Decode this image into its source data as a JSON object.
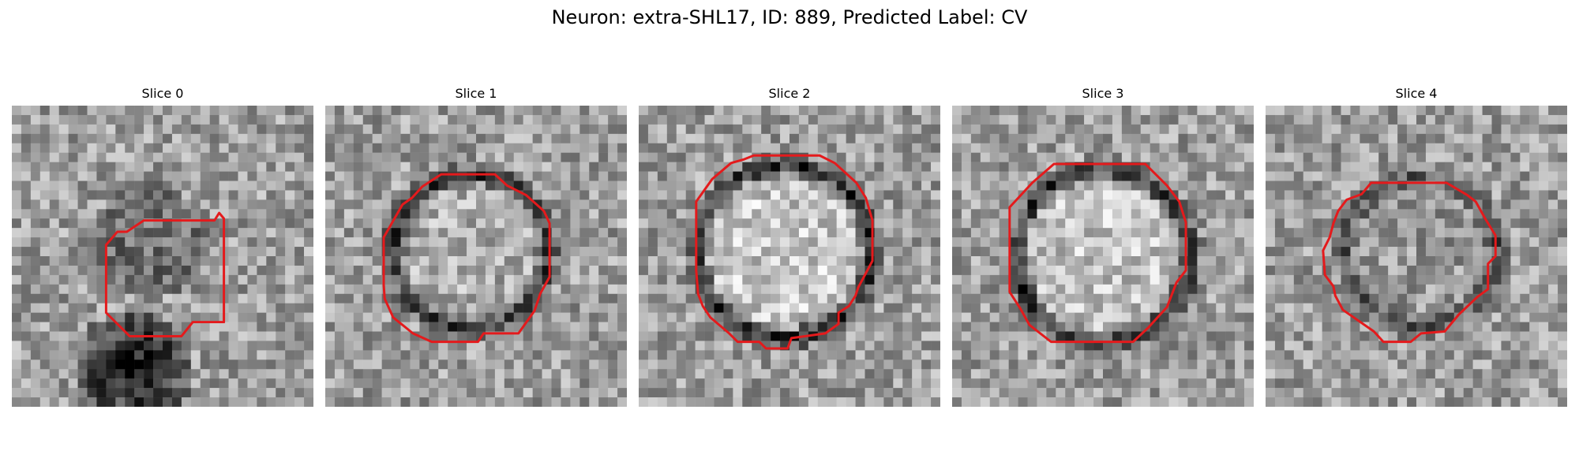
{
  "figure": {
    "title": "Neuron: extra-SHL17, ID: 889, Predicted Label: CV"
  },
  "slices": [
    {
      "label": "Slice 0"
    },
    {
      "label": "Slice 1"
    },
    {
      "label": "Slice 2"
    },
    {
      "label": "Slice 3"
    },
    {
      "label": "Slice 4"
    }
  ],
  "colors": {
    "contour": "#e41a1c",
    "background": "#ffffff"
  },
  "colormap": "grayscale"
}
